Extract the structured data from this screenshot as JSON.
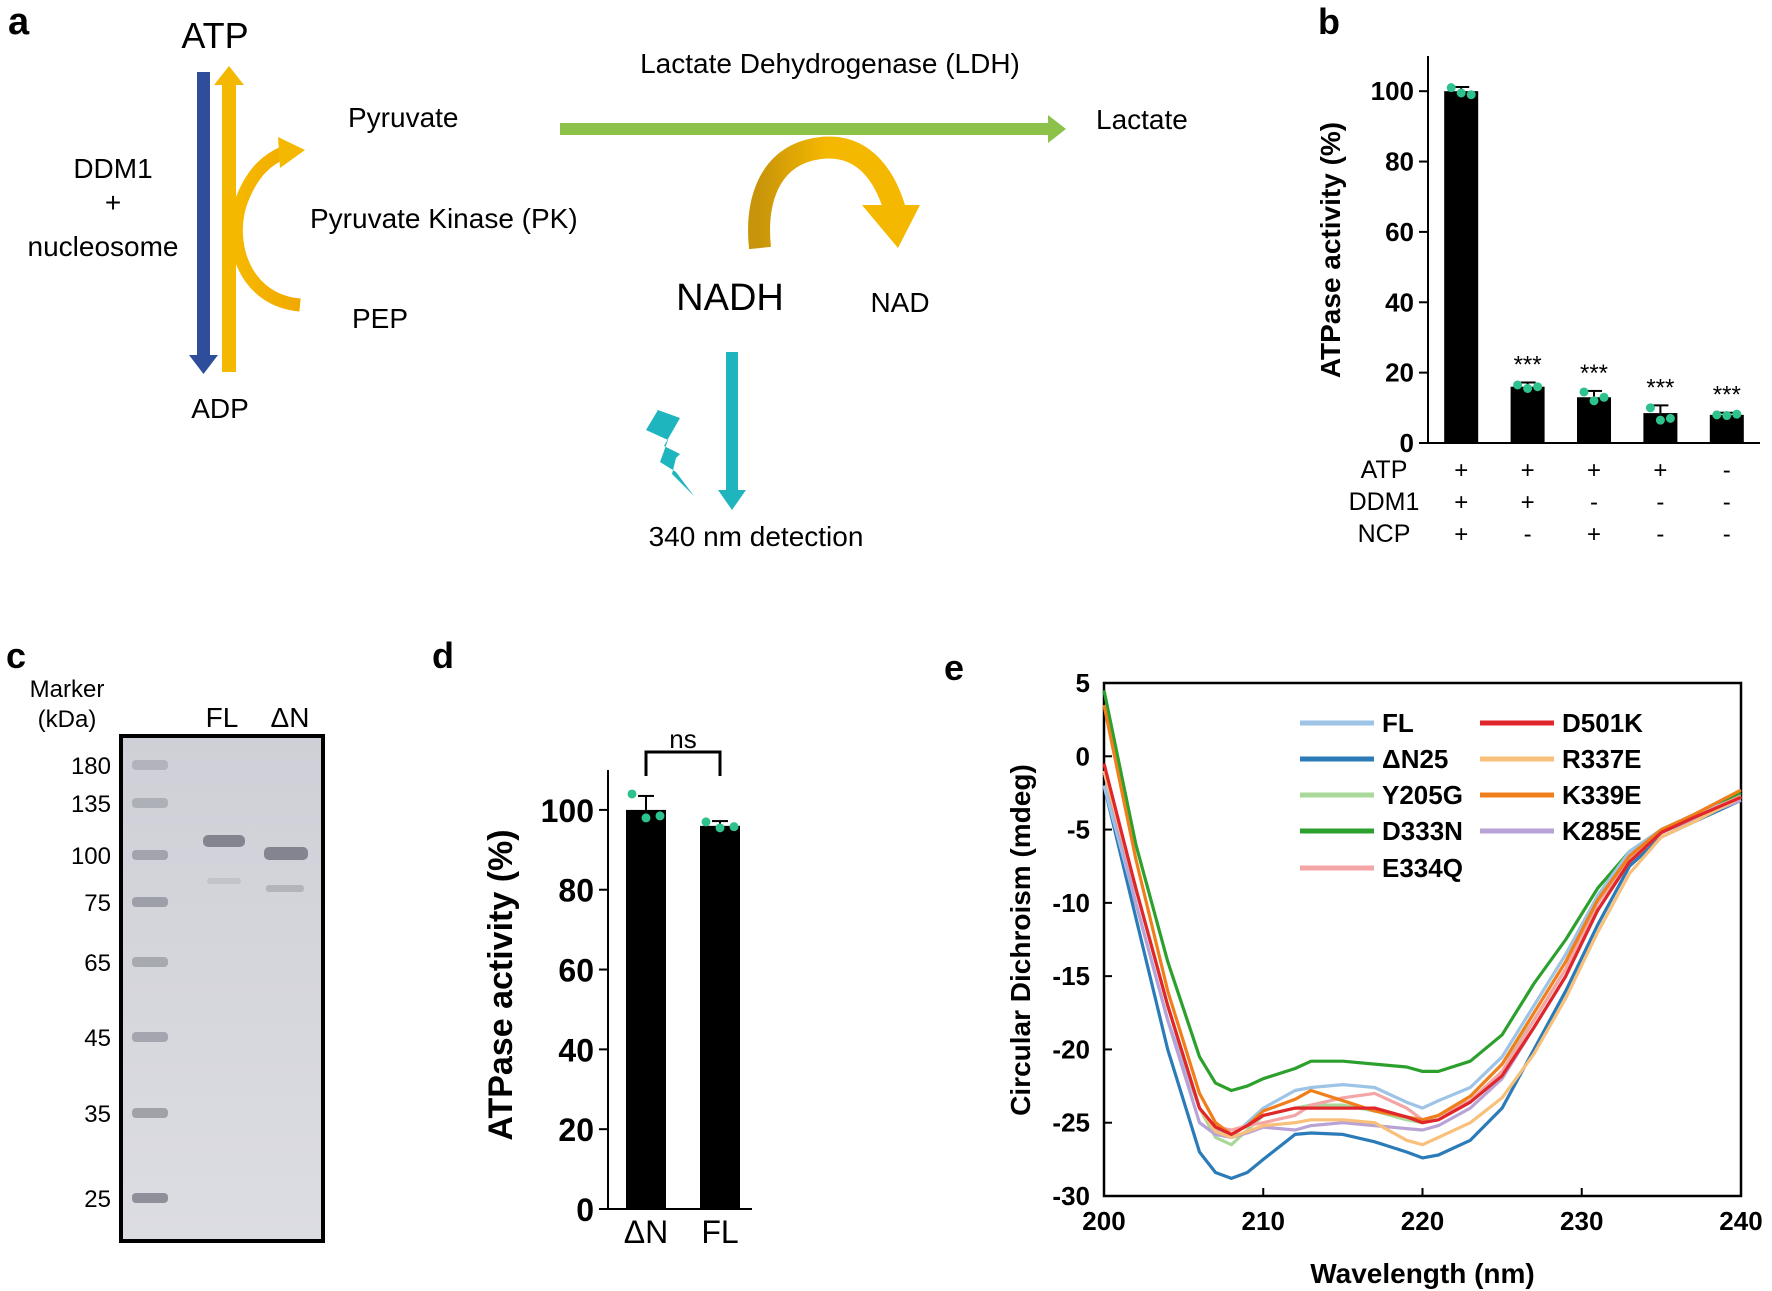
{
  "panel_a": {
    "panel_label": "a",
    "atp": "ATP",
    "adp": "ADP",
    "ddm1_line1": "DDM1",
    "ddm1_plus": "+",
    "ddm1_line3": "nucleosome",
    "pyruvate": "Pyruvate",
    "pk": "Pyruvate Kinase (PK)",
    "pep": "PEP",
    "ldh": "Lactate Dehydrogenase (LDH)",
    "lactate": "Lactate",
    "nadh": "NADH",
    "nad": "NAD",
    "detection": "340 nm detection",
    "colors": {
      "blue": "#2e4e9c",
      "yellow": "#f5b800",
      "green": "#8cc24a",
      "teal": "#1fb5be"
    }
  },
  "panel_c": {
    "panel_label": "c",
    "marker_title_1": "Marker",
    "marker_title_2": "(kDa)",
    "lane_fl": "FL",
    "lane_dn": "ΔN",
    "markers": [
      "180",
      "135",
      "100",
      "75",
      "65",
      "45",
      "35",
      "25"
    ]
  },
  "chart_data": [
    {
      "id": "panel_b",
      "panel_label": "b",
      "type": "bar",
      "ylabel": "ATPase activity (%)",
      "ylim": [
        0,
        110
      ],
      "yticks": [
        0,
        20,
        40,
        60,
        80,
        100
      ],
      "values": [
        100,
        16,
        13,
        8.5,
        8
      ],
      "errors": [
        1.2,
        1.2,
        1.8,
        2.2,
        0.6
      ],
      "points": [
        [
          101,
          99.5,
          99
        ],
        [
          16.5,
          15.5,
          16
        ],
        [
          14.5,
          12,
          13
        ],
        [
          10,
          6.5,
          7
        ],
        [
          8,
          7.8,
          8.2
        ]
      ],
      "significance": [
        "",
        "***",
        "***",
        "***",
        "***"
      ],
      "condition_rows": [
        {
          "label": "ATP",
          "marks": [
            "+",
            "+",
            "+",
            "+",
            "-"
          ]
        },
        {
          "label": "DDM1",
          "marks": [
            "+",
            "+",
            "-",
            "-",
            "-"
          ]
        },
        {
          "label": "NCP",
          "marks": [
            "+",
            "-",
            "+",
            "-",
            "-"
          ]
        }
      ],
      "bar_color": "#000000",
      "point_color": "#2ec28d"
    },
    {
      "id": "panel_d",
      "panel_label": "d",
      "type": "bar",
      "ylabel": "ATPase activity (%)",
      "categories": [
        "ΔN",
        "FL"
      ],
      "values": [
        100,
        96
      ],
      "errors": [
        3.5,
        1.2
      ],
      "points": [
        [
          104,
          98,
          98.5
        ],
        [
          97,
          95.5,
          95.8
        ]
      ],
      "ylim": [
        0,
        110
      ],
      "yticks": [
        0,
        20,
        40,
        60,
        80,
        100
      ],
      "significance_label": "ns",
      "bar_color": "#000000",
      "point_color": "#2ec28d"
    },
    {
      "id": "panel_e",
      "panel_label": "e",
      "type": "line",
      "xlabel": "Wavelength (nm)",
      "ylabel": "Circular Dichroism (mdeg)",
      "xlim": [
        200,
        240
      ],
      "ylim": [
        -30,
        5
      ],
      "xticks": [
        200,
        210,
        220,
        230,
        240
      ],
      "yticks": [
        -30,
        -25,
        -20,
        -15,
        -10,
        -5,
        0,
        5
      ],
      "x": [
        200,
        202,
        204,
        206,
        207,
        208,
        209,
        210,
        212,
        213,
        215,
        217,
        219,
        220,
        221,
        223,
        225,
        227,
        229,
        231,
        233,
        235,
        237,
        240
      ],
      "series": [
        {
          "name": "FL",
          "color": "#9dc3e6",
          "values": [
            -2,
            -10,
            -18,
            -24,
            -25.5,
            -26,
            -25,
            -24,
            -22.8,
            -22.6,
            -22.4,
            -22.6,
            -23.6,
            -24,
            -23.5,
            -22.6,
            -20.5,
            -17,
            -13.5,
            -9.5,
            -6.5,
            -5,
            -4,
            -2.8
          ]
        },
        {
          "name": "ΔN25",
          "color": "#2a7bb8",
          "values": [
            -2,
            -11,
            -20,
            -27,
            -28.4,
            -28.8,
            -28.4,
            -27.5,
            -25.8,
            -25.7,
            -25.8,
            -26.3,
            -27,
            -27.4,
            -27.2,
            -26.2,
            -24,
            -20,
            -16,
            -11.5,
            -7.5,
            -5.5,
            -4.5,
            -3
          ]
        },
        {
          "name": "Y205G",
          "color": "#a9d89a",
          "values": [
            -1,
            -9,
            -17,
            -24,
            -26,
            -26.5,
            -25.5,
            -24.5,
            -24,
            -23.8,
            -23.8,
            -24.2,
            -24.8,
            -25,
            -24.5,
            -23.2,
            -21,
            -18,
            -14.5,
            -10,
            -7,
            -5.2,
            -4.2,
            -2.8
          ]
        },
        {
          "name": "D333N",
          "color": "#2ca02c",
          "values": [
            4.5,
            -6,
            -14,
            -20.5,
            -22.3,
            -22.8,
            -22.5,
            -22,
            -21.3,
            -20.8,
            -20.8,
            -21,
            -21.2,
            -21.5,
            -21.5,
            -20.8,
            -19,
            -15.5,
            -12.5,
            -9,
            -6.5,
            -5,
            -4,
            -2.5
          ]
        },
        {
          "name": "E334Q",
          "color": "#f4a6a6",
          "values": [
            -1,
            -9,
            -17,
            -24,
            -25.3,
            -25.5,
            -25.2,
            -25,
            -24.5,
            -23.8,
            -23.3,
            -23,
            -24,
            -24.8,
            -24.5,
            -23.5,
            -21.5,
            -18,
            -14.5,
            -10,
            -7,
            -5,
            -4.2,
            -2.7
          ]
        },
        {
          "name": "D501K",
          "color": "#e0262b",
          "values": [
            -0.5,
            -9,
            -17,
            -24,
            -25.3,
            -25.8,
            -25.2,
            -24.5,
            -24,
            -24,
            -24,
            -24,
            -24.6,
            -25,
            -24.8,
            -23.6,
            -21.8,
            -18.5,
            -15,
            -10.5,
            -7.2,
            -5.2,
            -4.2,
            -2.8
          ]
        },
        {
          "name": "R337E",
          "color": "#f8c07a",
          "values": [
            -1,
            -9,
            -17,
            -24,
            -25.6,
            -26,
            -25.6,
            -25.2,
            -25,
            -24.8,
            -24.8,
            -25,
            -26.2,
            -26.5,
            -26,
            -25,
            -23.3,
            -20.3,
            -16.5,
            -12,
            -8,
            -5.5,
            -4.5,
            -2.8
          ]
        },
        {
          "name": "K339E",
          "color": "#f07f1b",
          "values": [
            3.5,
            -7,
            -16,
            -23,
            -25,
            -25.8,
            -25.2,
            -24.2,
            -23.4,
            -22.8,
            -23.5,
            -24.2,
            -24.6,
            -24.8,
            -24.5,
            -23.2,
            -21,
            -17.5,
            -14,
            -9.8,
            -6.8,
            -5,
            -4,
            -2.3
          ]
        },
        {
          "name": "K285E",
          "color": "#b9a3d6",
          "values": [
            -1,
            -10,
            -18,
            -25,
            -25.8,
            -26,
            -25.7,
            -25.3,
            -25.5,
            -25.2,
            -25,
            -25.2,
            -25.4,
            -25.5,
            -25.2,
            -24,
            -22,
            -18.5,
            -15,
            -10.5,
            -7.2,
            -5.2,
            -4.3,
            -3
          ]
        }
      ]
    }
  ]
}
